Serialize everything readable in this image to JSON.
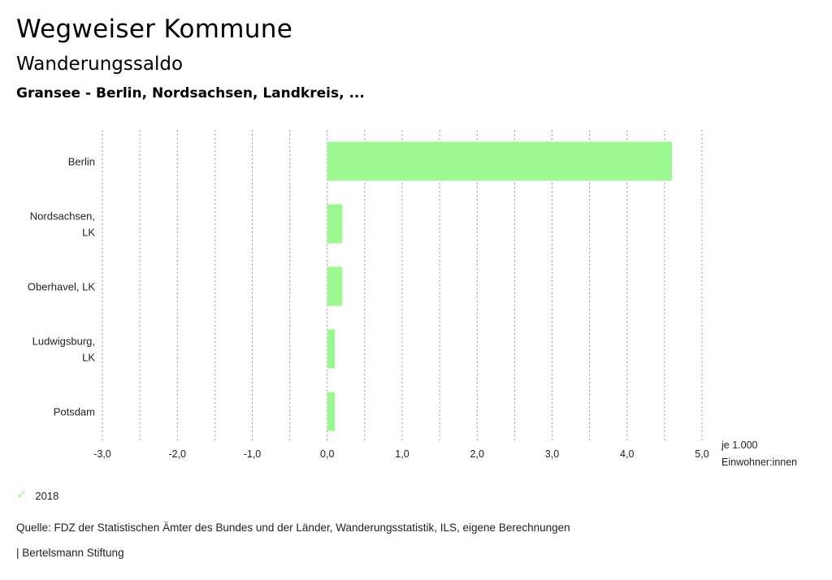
{
  "header": {
    "title": "Wegweiser Kommune",
    "subtitle": "Wanderungssaldo",
    "context": "Gransee - Berlin, Nordsachsen, Landkreis, ..."
  },
  "chart_data": {
    "type": "bar",
    "orientation": "horizontal",
    "categories": [
      [
        "Berlin"
      ],
      [
        "Nordsachsen,",
        "LK"
      ],
      [
        "Oberhavel, LK"
      ],
      [
        "Ludwigsburg,",
        "LK"
      ],
      [
        "Potsdam"
      ]
    ],
    "series": [
      {
        "name": "2018",
        "values": [
          4.6,
          0.2,
          0.2,
          0.1,
          0.1
        ]
      }
    ],
    "xlim": [
      -3.0,
      5.0
    ],
    "ticks": [
      {
        "value": -3.0,
        "label": "-3,0"
      },
      {
        "value": -2.0,
        "label": "-2,0"
      },
      {
        "value": -1.0,
        "label": "-1,0"
      },
      {
        "value": 0.0,
        "label": "0,0"
      },
      {
        "value": 1.0,
        "label": "1,0"
      },
      {
        "value": 2.0,
        "label": "2,0"
      },
      {
        "value": 3.0,
        "label": "3,0"
      },
      {
        "value": 4.0,
        "label": "4,0"
      },
      {
        "value": 5.0,
        "label": "5,0"
      }
    ],
    "gridlines": [
      -3.0,
      -2.5,
      -2.0,
      -1.5,
      -1.0,
      -0.5,
      0.0,
      0.5,
      1.0,
      1.5,
      2.0,
      2.5,
      3.0,
      3.5,
      4.0,
      4.5,
      5.0
    ],
    "unit_label": [
      "je 1.000",
      "Einwohner:innen"
    ],
    "grid": true,
    "legend_position": "bottom-left",
    "bar_color": "#9bf98f"
  },
  "legend": {
    "label": "2018",
    "check_symbol": "✓"
  },
  "footer": {
    "source": "Quelle: FDZ der Statistischen Ämter des Bundes und der Länder, Wanderungsstatistik, ILS, eigene Berechnungen",
    "publisher": "| Bertelsmann Stiftung"
  }
}
